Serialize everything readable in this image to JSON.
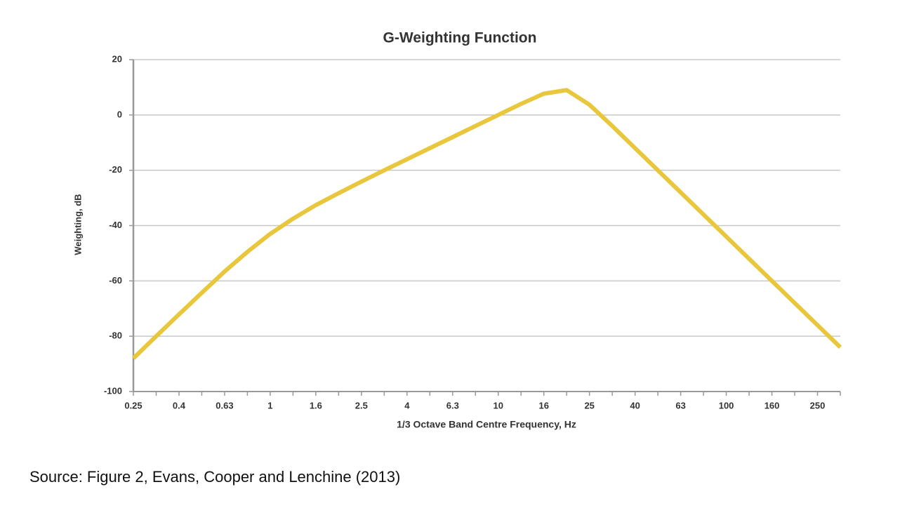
{
  "chart_data": {
    "type": "line",
    "title": "G-Weighting Function",
    "x_label": "1/3 Octave Band Centre Frequency, Hz",
    "y_label": "Weighting, dB",
    "source": "Source: Figure 2, Evans, Cooper and Lenchine (2013)",
    "categories": [
      "0.25",
      null,
      "0.4",
      null,
      "0.63",
      null,
      "1",
      null,
      "1.6",
      null,
      "2.5",
      null,
      "4",
      null,
      "6.3",
      null,
      "10",
      null,
      "16",
      null,
      "25",
      null,
      "40",
      null,
      "63",
      null,
      "100",
      null,
      "160",
      null,
      "250",
      null
    ],
    "values": [
      -88,
      -80,
      -72.1,
      -64.3,
      -56.6,
      -49.5,
      -43,
      -37.5,
      -32.6,
      -28.3,
      -24.1,
      -20,
      -16,
      -12,
      -8,
      -4,
      0,
      4,
      7.7,
      9,
      3.7,
      -4,
      -12,
      -20,
      -28,
      -36,
      -44,
      -52,
      -60,
      -68,
      -76,
      -84
    ],
    "color": "#e9c73c",
    "ylim": [
      -100,
      20
    ],
    "yticks": [
      -100,
      -80,
      -60,
      -40,
      -20,
      0,
      20
    ],
    "grid": true
  }
}
